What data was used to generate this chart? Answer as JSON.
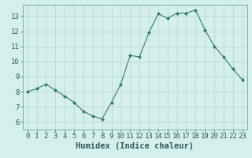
{
  "x": [
    0,
    1,
    2,
    3,
    4,
    5,
    6,
    7,
    8,
    9,
    10,
    11,
    12,
    13,
    14,
    15,
    16,
    17,
    18,
    19,
    20,
    21,
    22,
    23
  ],
  "y": [
    8.0,
    8.2,
    8.5,
    8.1,
    7.7,
    7.3,
    6.7,
    6.4,
    6.2,
    7.3,
    8.5,
    10.4,
    10.3,
    11.9,
    13.15,
    12.85,
    13.2,
    13.2,
    13.4,
    12.1,
    11.0,
    10.3,
    9.5,
    8.8
  ],
  "line_color": "#2e7d6e",
  "marker": "D",
  "marker_size": 2.0,
  "bg_color": "#d5efec",
  "grid_color": "#b8d8d4",
  "xlabel": "Humidex (Indice chaleur)",
  "xlim": [
    -0.5,
    23.5
  ],
  "ylim": [
    5.5,
    13.75
  ],
  "yticks": [
    6,
    7,
    8,
    9,
    10,
    11,
    12,
    13
  ],
  "xtick_labels": [
    "0",
    "1",
    "2",
    "3",
    "4",
    "5",
    "6",
    "7",
    "8",
    "9",
    "10",
    "11",
    "12",
    "13",
    "14",
    "15",
    "16",
    "17",
    "18",
    "19",
    "20",
    "21",
    "22",
    "23"
  ],
  "xlabel_fontsize": 7.5,
  "tick_fontsize": 6.5,
  "linewidth": 0.8
}
